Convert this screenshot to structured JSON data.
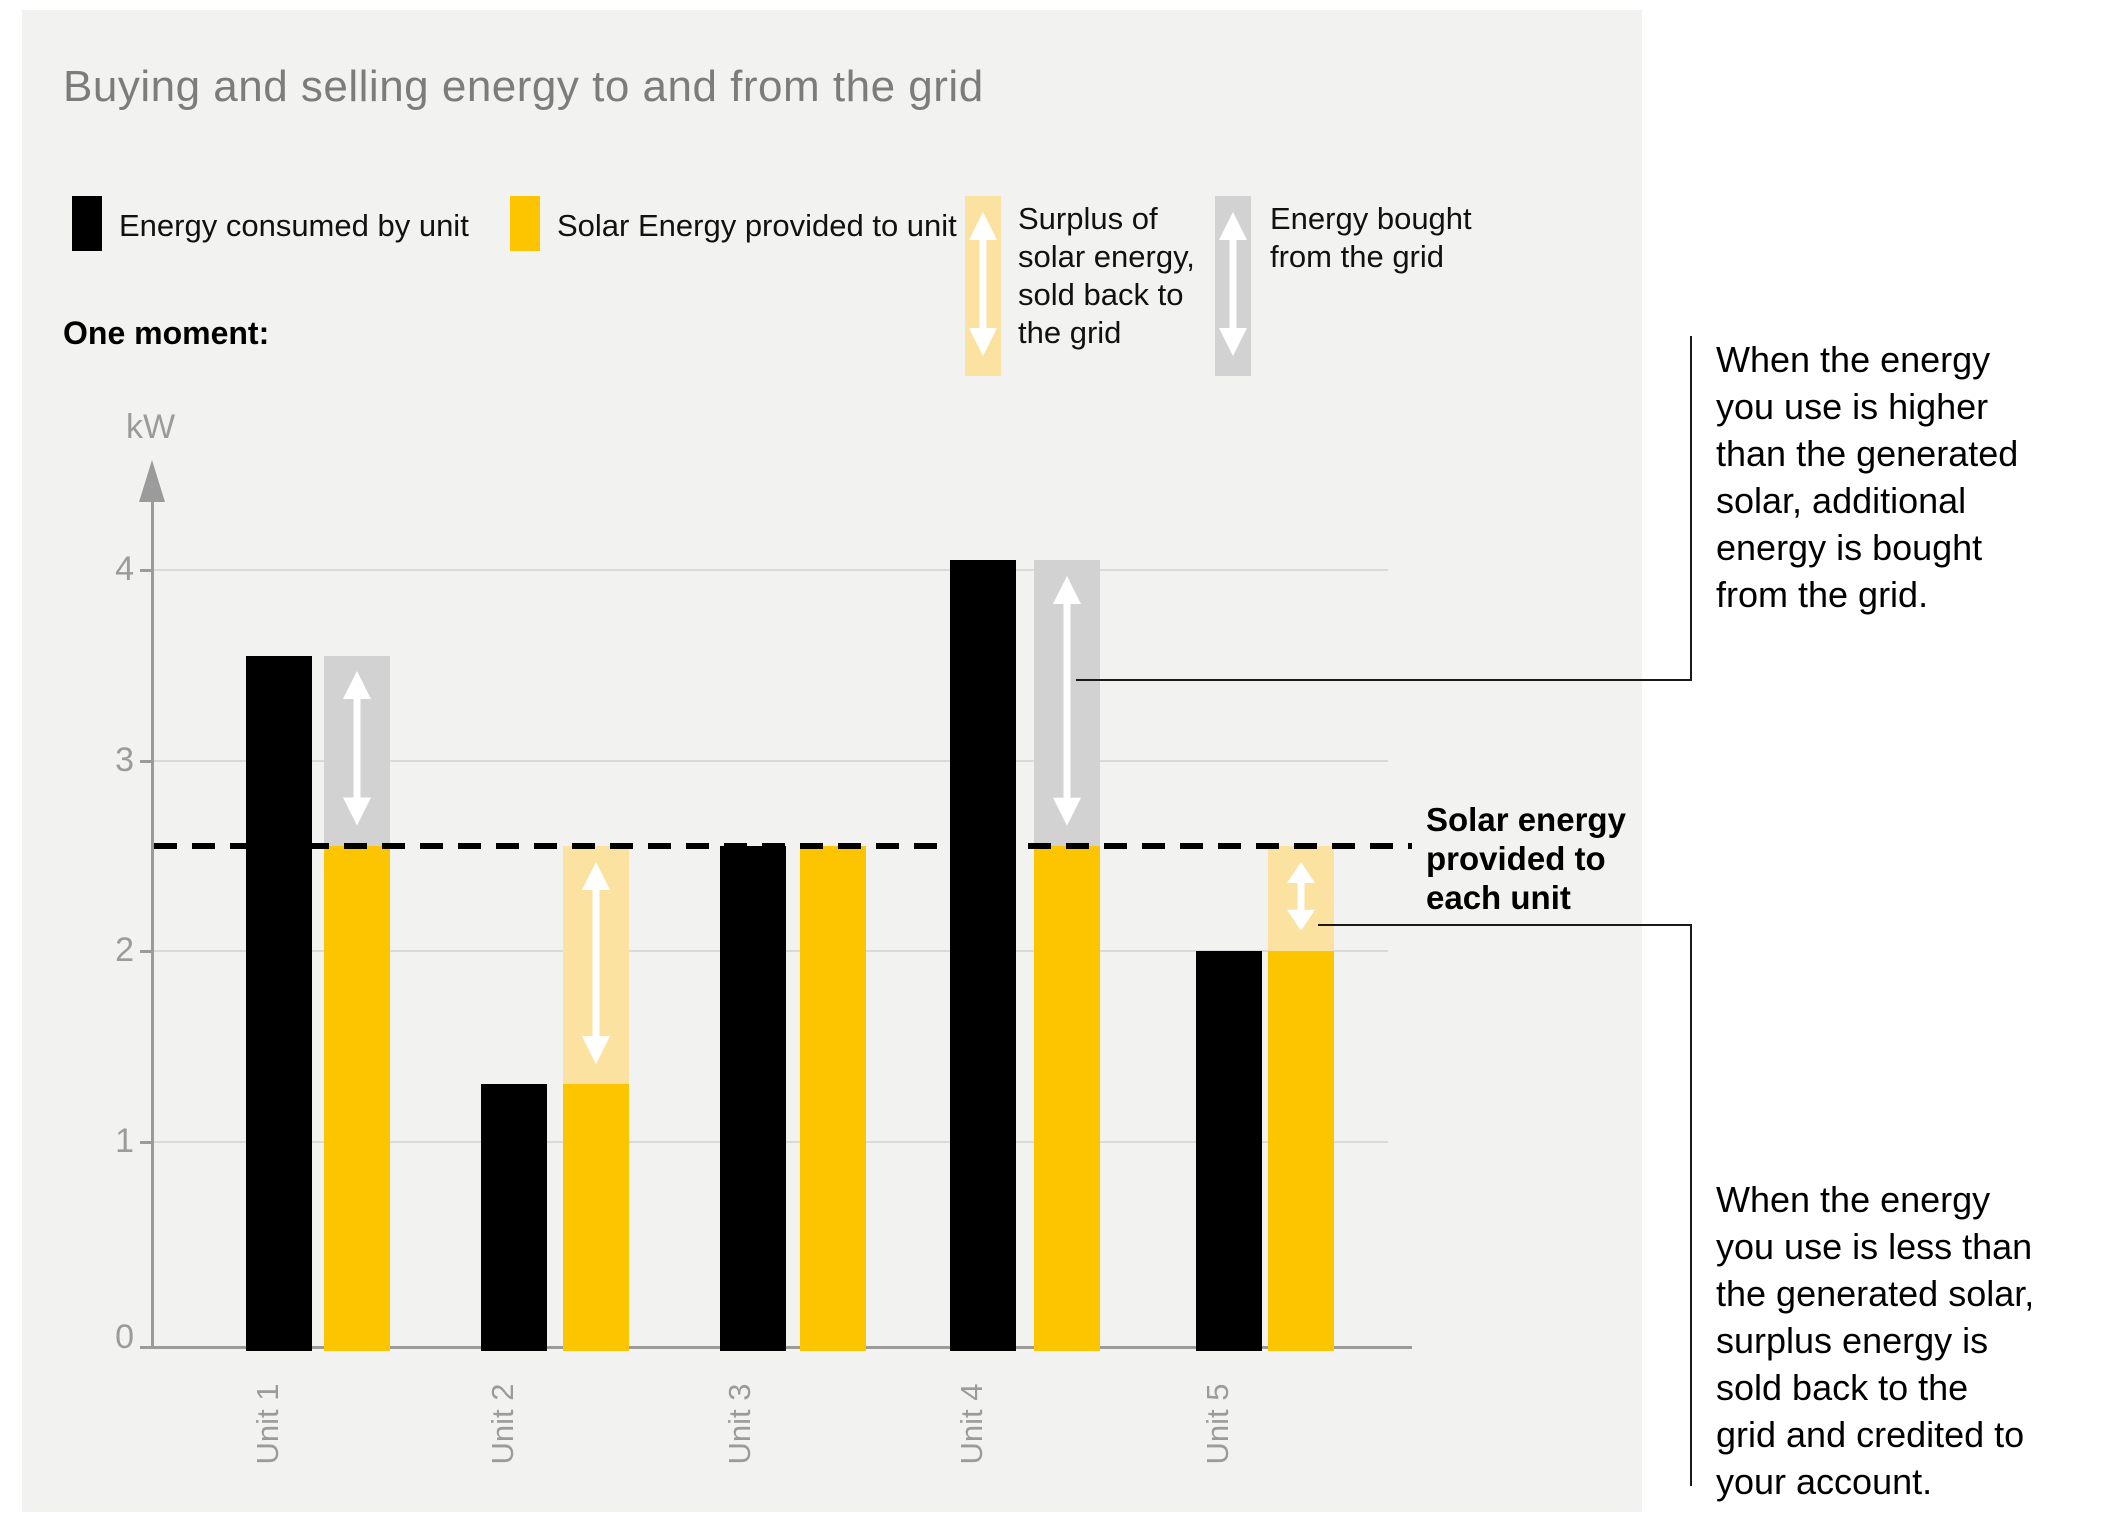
{
  "page": {
    "title": "Buying and selling energy to and from the grid"
  },
  "legend": {
    "consumed_label": "Energy consumed by unit",
    "solar_label": "Solar Energy provided to unit",
    "surplus_label": "Surplus of\nsolar energy,\nsold back to\nthe grid",
    "bought_label": "Energy bought\nfrom the grid"
  },
  "moment_label": "One moment:",
  "axis": {
    "unit_label": "kW"
  },
  "reference_label": "Solar energy\nprovided to\neach unit",
  "annotations": {
    "bought_note": "When the energy\nyou use is higher\nthan the generated\nsolar, additional\nenergy is bought\nfrom the grid.",
    "surplus_note": "When the energy\nyou use is less than\nthe generated solar,\nsurplus energy is\nsold back to the\ngrid and credited to\nyour account."
  },
  "colors": {
    "consumed": "#000000",
    "solar": "#fdc500",
    "surplus": "#fbe2a0",
    "bought": "#d2d2d2",
    "panel_bg": "#f2f2f1",
    "grid": "#d9d9d8",
    "axis_gray": "#9b9b9b",
    "title_gray": "#7c7c7c",
    "arrow_white": "#ffffff"
  },
  "chart_data": {
    "type": "bar",
    "title": "One moment:",
    "ylabel": "kW",
    "categories": [
      "Unit 1",
      "Unit 2",
      "Unit 3",
      "Unit 4",
      "Unit 5"
    ],
    "series": [
      {
        "name": "Energy consumed by unit",
        "values": [
          3.55,
          1.3,
          2.55,
          4.05,
          2.0
        ]
      },
      {
        "name": "Solar Energy provided to unit",
        "values": [
          2.55,
          1.3,
          2.55,
          2.55,
          2.0
        ]
      }
    ],
    "bands": [
      {
        "category": "Unit 1",
        "kind": "bought",
        "from": 2.55,
        "to": 3.55
      },
      {
        "category": "Unit 2",
        "kind": "surplus",
        "from": 1.3,
        "to": 2.55
      },
      {
        "category": "Unit 4",
        "kind": "bought",
        "from": 2.55,
        "to": 4.05
      },
      {
        "category": "Unit 5",
        "kind": "surplus",
        "from": 2.0,
        "to": 2.55
      }
    ],
    "reference_line": {
      "value": 2.55,
      "label": "Solar energy provided to each unit",
      "style": "dashed"
    },
    "ylim": [
      0,
      4.6
    ],
    "yticks": [
      0,
      1,
      2,
      3,
      4
    ],
    "grid": true,
    "legend_position": "top"
  }
}
